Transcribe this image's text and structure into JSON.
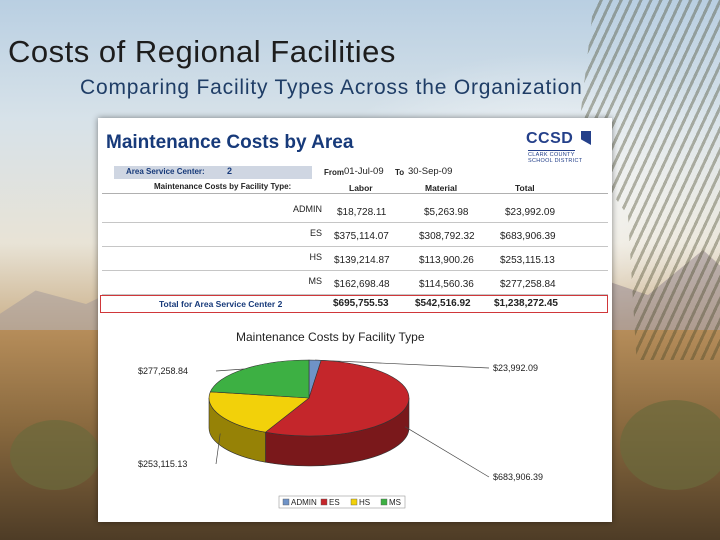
{
  "slide": {
    "title": "Costs of Regional Facilities",
    "subtitle": "Comparing Facility Types Across the Organization"
  },
  "report": {
    "title": "Maintenance Costs by Area",
    "logo": {
      "main": "CCSD",
      "line1": "CLARK COUNTY",
      "line2": "SCHOOL DISTRICT"
    },
    "area_label": "Area Service Center:",
    "area_value": "2",
    "from_label": "From",
    "from_date": "01-Jul-09",
    "to_label": "To",
    "to_date": "30-Sep-09",
    "section_label": "Maintenance Costs by Facility Type:",
    "columns": [
      "Labor",
      "Material",
      "Total"
    ]
  },
  "chart_data": [
    {
      "type": "table",
      "columns": [
        "",
        "Labor",
        "Material",
        "Total"
      ],
      "rows": [
        {
          "type": "ADMIN",
          "labor": "$18,728.11",
          "material": "$5,263.98",
          "total": "$23,992.09"
        },
        {
          "type": "ES",
          "labor": "$375,114.07",
          "material": "$308,792.32",
          "total": "$683,906.39"
        },
        {
          "type": "HS",
          "labor": "$139,214.87",
          "material": "$113,900.26",
          "total": "$253,115.13"
        },
        {
          "type": "MS",
          "labor": "$162,698.48",
          "material": "$114,560.36",
          "total": "$277,258.84"
        }
      ],
      "total_row": {
        "label": "Total for Area Service Center 2",
        "labor": "$695,755.53",
        "material": "$542,516.92",
        "total": "$1,238,272.45"
      }
    },
    {
      "type": "pie",
      "title": "Maintenance Costs by Facility Type",
      "categories": [
        "ADMIN",
        "ES",
        "HS",
        "MS"
      ],
      "values": [
        23992.09,
        683906.39,
        253115.13,
        277258.84
      ],
      "labels": [
        "$23,992.09",
        "$683,906.39",
        "$253,115.13",
        "$277,258.84"
      ],
      "colors": [
        "#6f93c7",
        "#c4262b",
        "#f2d10a",
        "#3db043"
      ],
      "legend_position": "bottom",
      "style": "3d"
    }
  ]
}
